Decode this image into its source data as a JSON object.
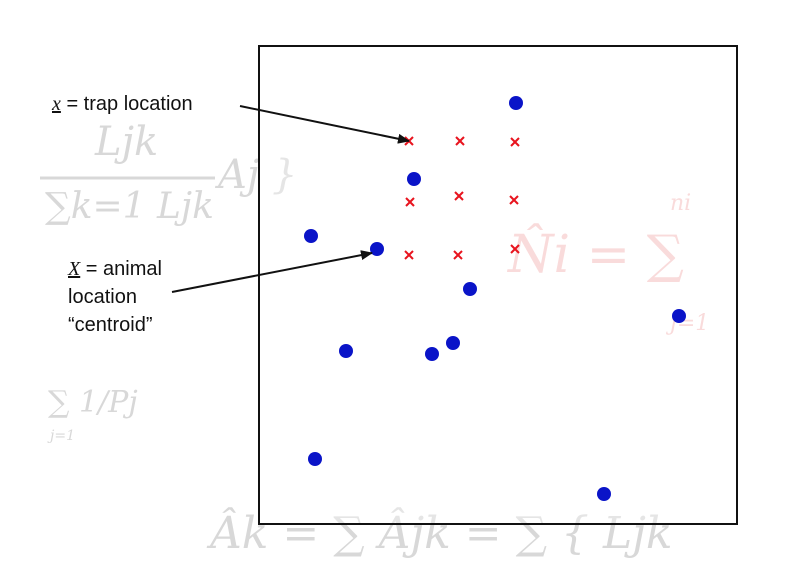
{
  "labels": {
    "trap": {
      "symbol": "x",
      "text": " = trap location"
    },
    "animal": {
      "symbol": "X",
      "line1_text": " = animal",
      "line2": "location",
      "line3": "“centroid”"
    }
  },
  "background_formulas": {
    "left_fraction_num": "Ljk",
    "left_fraction_den": "∑k=1 Ljk",
    "left_factor": "Aj }",
    "right_formula": "N̂i = ∑",
    "right_sub": "j=1",
    "right_sup": "ni",
    "sum_recip": "∑ 1/Pj",
    "sum_recip_sub": "j=1",
    "bottom_formula": "Âk = ∑ Âjk = ∑ { Ljk"
  },
  "colors": {
    "animal_dot": "#0a14c8",
    "trap_marker": "#e8141e",
    "frame": "#111111",
    "arrow": "#111111"
  }
}
